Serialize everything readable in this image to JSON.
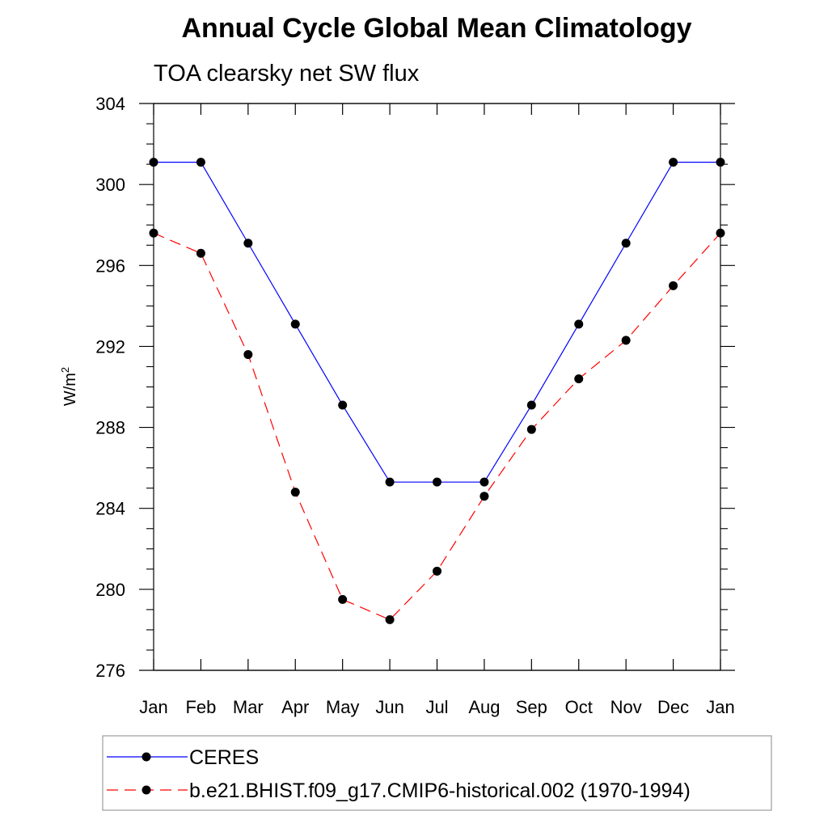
{
  "chart_data": {
    "type": "line",
    "title": "Annual Cycle Global Mean Climatology",
    "subtitle": "TOA clearsky net SW flux",
    "ylabel": "W/m",
    "ylabel_superscript": "2",
    "xlabel": "",
    "categories": [
      "Jan",
      "Feb",
      "Mar",
      "Apr",
      "May",
      "Jun",
      "Jul",
      "Aug",
      "Sep",
      "Oct",
      "Nov",
      "Dec",
      "Jan"
    ],
    "ylim": [
      276,
      304
    ],
    "yticks": [
      276,
      280,
      284,
      288,
      292,
      296,
      300,
      304
    ],
    "series": [
      {
        "name": "CERES",
        "color": "#0000ff",
        "dash": "solid",
        "marker": "filled-circle",
        "values": [
          301.1,
          301.1,
          297.1,
          293.1,
          289.1,
          285.3,
          285.3,
          285.3,
          289.1,
          293.1,
          297.1,
          301.1,
          301.1
        ]
      },
      {
        "name": "b.e21.BHIST.f09_g17.CMIP6-historical.002 (1970-1994)",
        "color": "#ff0000",
        "dash": "dashed",
        "marker": "filled-circle",
        "values": [
          297.6,
          296.6,
          291.6,
          284.8,
          279.5,
          278.5,
          280.9,
          284.6,
          287.9,
          290.4,
          292.3,
          295.0,
          297.6
        ]
      }
    ],
    "legend_position": "bottom"
  }
}
